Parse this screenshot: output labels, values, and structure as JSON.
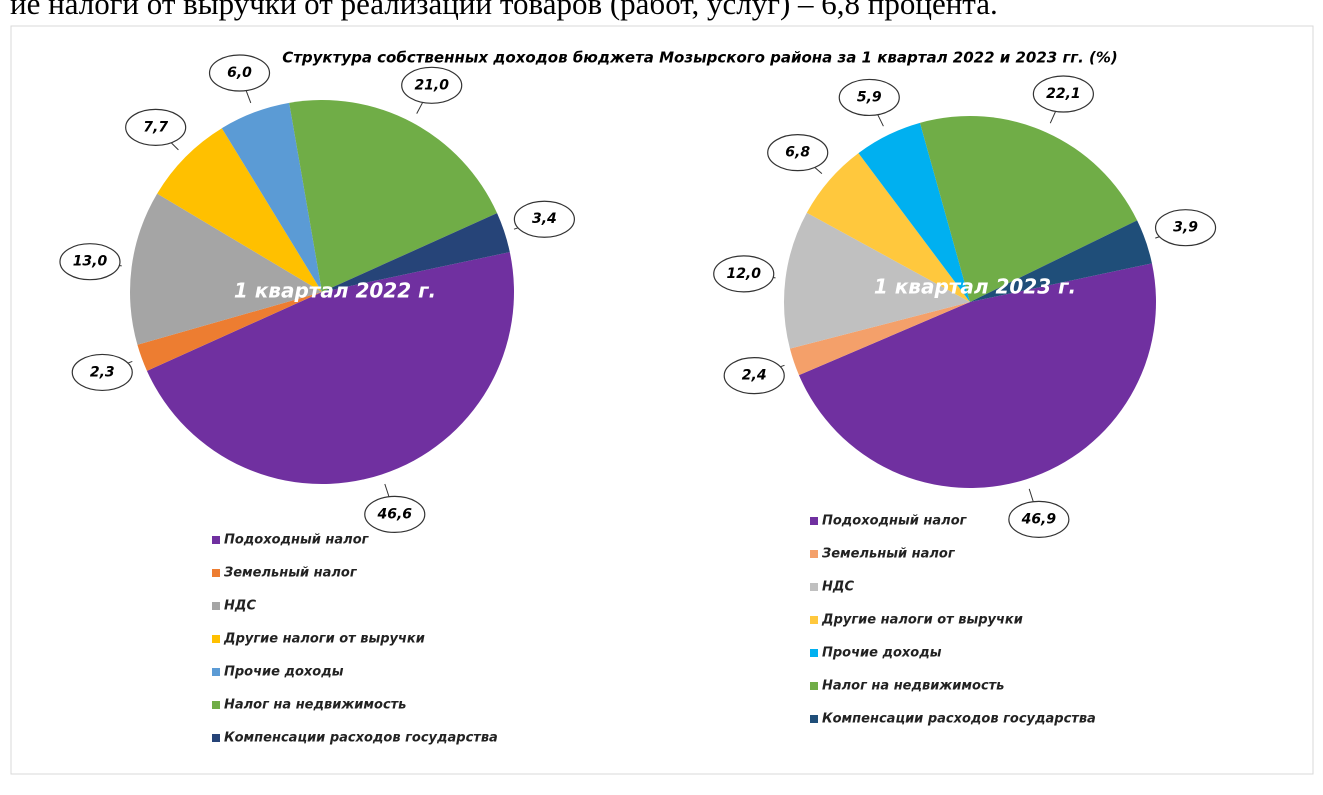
{
  "page_text": "ие налоги от выручки от реализации товаров (работ, услуг) – 6,8 процента.",
  "title": "Структура собственных доходов бюджета Мозырского района за  1 квартал 2022 и 2023 гг. (%)",
  "chart_data": [
    {
      "type": "pie",
      "center_label": "1 квартал 2022 г.",
      "categories": [
        "Подоходный налог",
        "Земельный налог",
        "НДС",
        "Другие налоги от выручки",
        "Прочие доходы",
        "Налог на недвижимость",
        "Компенсации расходов государства"
      ],
      "values": [
        46.6,
        2.3,
        13.0,
        7.7,
        6.0,
        21.0,
        3.4
      ],
      "value_labels": [
        "46,6",
        "2,3",
        "13,0",
        "7,7",
        "6,0",
        "21,0",
        "3,4"
      ],
      "colors": [
        "#7030a0",
        "#ed7d31",
        "#a5a5a5",
        "#ffc000",
        "#5b9bd5",
        "#70ad47",
        "#264478"
      ]
    },
    {
      "type": "pie",
      "center_label": "1 квартал 2023 г.",
      "categories": [
        "Подоходный налог",
        "Земельный налог",
        "НДС",
        "Другие налоги от выручки",
        "Прочие доходы",
        "Налог на недвижимость",
        "Компенсации расходов государства"
      ],
      "values": [
        46.9,
        2.4,
        12.0,
        6.8,
        5.9,
        22.1,
        3.9
      ],
      "value_labels": [
        "46,9",
        "2,4",
        "12,0",
        "6,8",
        "5,9",
        "22,1",
        "3,9"
      ],
      "colors": [
        "#7030a0",
        "#f4a06a",
        "#c0c0c0",
        "#ffc83d",
        "#00b0f0",
        "#70ad47",
        "#1f4e79"
      ]
    }
  ]
}
